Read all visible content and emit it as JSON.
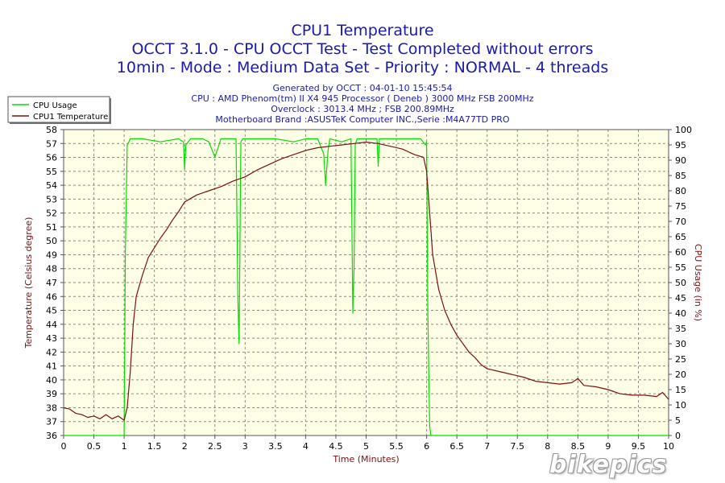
{
  "chart_data": {
    "type": "line",
    "title": [
      "CPU1 Temperature",
      "OCCT 3.1.0 - CPU OCCT Test - Test Completed without errors",
      "10min - Mode : Medium Data Set - Priority : NORMAL - 4 threads"
    ],
    "info": [
      "Generated by OCCT : 04-01-10 15:45:54",
      "CPU : AMD Phenom(tm) II X4 945 Processor ( Deneb ) 3000 MHz FSB 200MHz",
      "Overclock : 3013.4 MHz ; FSB 200.89MHz",
      "Motherboard Brand :ASUSTeK Computer INC.,Serie :M4A77TD PRO"
    ],
    "xlabel": "Time (Minutes)",
    "ylabel": "Temperature (Celsius degree)",
    "y2label": "CPU Usage (in %)",
    "xlim": [
      0,
      10
    ],
    "ylim": [
      36,
      58
    ],
    "y2lim": [
      0,
      100
    ],
    "grid": true,
    "legend_position": "top-left",
    "colors": {
      "usage": "#00dd00",
      "temp": "#7a1010",
      "plot_bg": "#ffffe6",
      "text": "#7a1010",
      "title": "#1a1aa8"
    },
    "x_ticks": [
      "0",
      "0.5",
      "1",
      "1.5",
      "2",
      "2.5",
      "3",
      "3.5",
      "4",
      "4.5",
      "5",
      "5.5",
      "6",
      "6.5",
      "7",
      "7.5",
      "8",
      "8.5",
      "9",
      "9.5",
      "10"
    ],
    "y_ticks": [
      "36",
      "37",
      "38",
      "39",
      "40",
      "41",
      "42",
      "43",
      "44",
      "45",
      "46",
      "47",
      "48",
      "49",
      "50",
      "51",
      "52",
      "53",
      "54",
      "55",
      "56",
      "57",
      "58"
    ],
    "y2_ticks": [
      "0",
      "5",
      "10",
      "15",
      "20",
      "25",
      "30",
      "35",
      "40",
      "45",
      "50",
      "55",
      "60",
      "65",
      "70",
      "75",
      "80",
      "85",
      "90",
      "95",
      "100"
    ],
    "series": [
      {
        "name": "CPU Usage",
        "axis": "right",
        "x": [
          0,
          1.0,
          1.02,
          1.05,
          1.08,
          1.1,
          1.3,
          1.6,
          1.9,
          1.98,
          2.0,
          2.02,
          2.1,
          2.3,
          2.4,
          2.5,
          2.6,
          2.85,
          2.88,
          2.9,
          2.93,
          2.96,
          3.1,
          3.3,
          3.5,
          3.8,
          4.0,
          4.2,
          4.3,
          4.33,
          4.37,
          4.4,
          4.6,
          4.75,
          4.78,
          4.8,
          4.82,
          4.85,
          5.0,
          5.1,
          5.18,
          5.2,
          5.22,
          5.3,
          5.5,
          5.7,
          5.9,
          5.98,
          6.0,
          6.02,
          6.05,
          6.07,
          6.1,
          10
        ],
        "values": [
          0,
          0,
          60,
          95,
          96,
          97,
          97,
          96,
          97,
          96,
          87,
          95,
          97,
          97,
          96,
          91,
          97,
          97,
          45,
          30,
          96,
          97,
          97,
          97,
          97,
          96,
          97,
          97,
          92,
          82,
          93,
          97,
          96,
          97,
          40,
          55,
          95,
          97,
          97,
          97,
          97,
          88,
          97,
          97,
          97,
          97,
          97,
          95,
          96,
          40,
          3,
          0,
          0,
          0
        ]
      },
      {
        "name": "CPU1 Temperature",
        "axis": "left",
        "x": [
          0,
          0.1,
          0.2,
          0.3,
          0.4,
          0.5,
          0.6,
          0.7,
          0.8,
          0.9,
          1.0,
          1.05,
          1.1,
          1.15,
          1.2,
          1.3,
          1.4,
          1.5,
          1.6,
          1.7,
          1.8,
          1.9,
          2.0,
          2.2,
          2.4,
          2.6,
          2.8,
          3.0,
          3.2,
          3.4,
          3.6,
          3.8,
          4.0,
          4.2,
          4.4,
          4.6,
          4.8,
          5.0,
          5.2,
          5.4,
          5.6,
          5.8,
          5.95,
          6.0,
          6.05,
          6.1,
          6.2,
          6.3,
          6.4,
          6.5,
          6.6,
          6.7,
          6.8,
          6.9,
          7.0,
          7.2,
          7.4,
          7.6,
          7.8,
          8.0,
          8.2,
          8.4,
          8.5,
          8.6,
          8.8,
          9.0,
          9.2,
          9.4,
          9.6,
          9.8,
          9.9,
          10.0
        ],
        "values": [
          38,
          37.9,
          37.6,
          37.5,
          37.3,
          37.4,
          37.2,
          37.5,
          37.2,
          37.4,
          37.1,
          38,
          40.5,
          44,
          46,
          47.5,
          48.8,
          49.5,
          50.2,
          50.8,
          51.5,
          52.1,
          52.8,
          53.3,
          53.6,
          53.9,
          54.3,
          54.6,
          55.1,
          55.5,
          55.9,
          56.2,
          56.5,
          56.7,
          56.8,
          56.9,
          57.0,
          57.1,
          57.0,
          56.8,
          56.6,
          56.2,
          56.0,
          55.0,
          52.0,
          49.0,
          46.5,
          45.0,
          44.0,
          43.2,
          42.6,
          42.0,
          41.6,
          41.1,
          40.8,
          40.6,
          40.4,
          40.2,
          39.9,
          39.8,
          39.7,
          39.8,
          40.1,
          39.6,
          39.5,
          39.3,
          39.0,
          38.9,
          38.9,
          38.8,
          39.1,
          38.6
        ]
      }
    ]
  },
  "watermark": "bikepics"
}
